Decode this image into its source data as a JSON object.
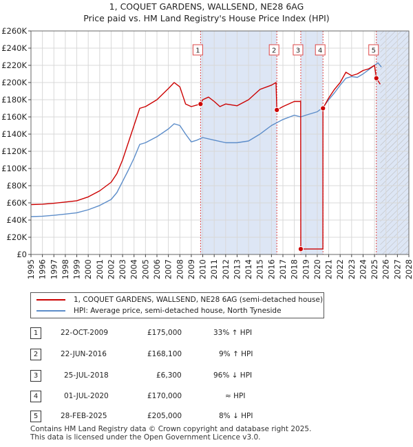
{
  "title_line1": "1, COQUET GARDENS, WALLSEND, NE28 6AG",
  "title_line2": "Price paid vs. HM Land Registry's House Price Index (HPI)",
  "legend": {
    "red_label": "1, COQUET GARDENS, WALLSEND, NE28 6AG (semi-detached house)",
    "blue_label": "HPI: Average price, semi-detached house, North Tyneside"
  },
  "colors": {
    "price_paid": "#cc0000",
    "hpi": "#5b8cc9",
    "shade": "#dde6f5",
    "grid": "#d8d8d8",
    "marker_dash": "#dd4444"
  },
  "transactions": [
    {
      "num": "1",
      "date": "22-OCT-2009",
      "price": "£175,000",
      "hpi": "33% ↑ HPI"
    },
    {
      "num": "2",
      "date": "22-JUN-2016",
      "price": "£168,100",
      "hpi": "9% ↑ HPI"
    },
    {
      "num": "3",
      "date": "25-JUL-2018",
      "price": "£6,300",
      "hpi": "96% ↓ HPI"
    },
    {
      "num": "4",
      "date": "01-JUL-2020",
      "price": "£170,000",
      "hpi": "≈ HPI"
    },
    {
      "num": "5",
      "date": "28-FEB-2025",
      "price": "£205,000",
      "hpi": "8% ↓ HPI"
    }
  ],
  "footer_line1": "Contains HM Land Registry data © Crown copyright and database right 2025.",
  "footer_line2": "This data is licensed under the Open Government Licence v3.0.",
  "chart_data": {
    "type": "line",
    "title": "1, COQUET GARDENS, WALLSEND, NE28 6AG",
    "subtitle": "Price paid vs. HM Land Registry's House Price Index (HPI)",
    "xlim": [
      1995,
      2028
    ],
    "ylim": [
      0,
      260000
    ],
    "x_ticks": [
      "1995",
      "1996",
      "1997",
      "1998",
      "1999",
      "2000",
      "2001",
      "2002",
      "2003",
      "2004",
      "2005",
      "2006",
      "2007",
      "2008",
      "2009",
      "2010",
      "2011",
      "2012",
      "2013",
      "2014",
      "2015",
      "2016",
      "2017",
      "2018",
      "2019",
      "2020",
      "2021",
      "2022",
      "2023",
      "2024",
      "2025",
      "2026",
      "2027",
      "2028"
    ],
    "y_ticks": [
      {
        "v": 0,
        "label": "£0"
      },
      {
        "v": 20000,
        "label": "£20K"
      },
      {
        "v": 40000,
        "label": "£40K"
      },
      {
        "v": 60000,
        "label": "£60K"
      },
      {
        "v": 80000,
        "label": "£80K"
      },
      {
        "v": 100000,
        "label": "£100K"
      },
      {
        "v": 120000,
        "label": "£120K"
      },
      {
        "v": 140000,
        "label": "£140K"
      },
      {
        "v": 160000,
        "label": "£160K"
      },
      {
        "v": 180000,
        "label": "£180K"
      },
      {
        "v": 200000,
        "label": "£200K"
      },
      {
        "v": 220000,
        "label": "£220K"
      },
      {
        "v": 240000,
        "label": "£240K"
      },
      {
        "v": 260000,
        "label": "£260K"
      }
    ],
    "grid": true,
    "shaded_ranges": [
      [
        2009.81,
        2016.47
      ],
      [
        2018.56,
        2020.5
      ],
      [
        2025.16,
        2028
      ]
    ],
    "hatched_from": 2025.5,
    "series": [
      {
        "name": "HPI: Average price, semi-detached house, North Tyneside",
        "x": [
          1995,
          1996,
          1997,
          1998,
          1999,
          2000,
          2001,
          2002,
          2002.5,
          2003,
          2003.5,
          2004,
          2004.5,
          2005,
          2006,
          2007,
          2007.5,
          2008,
          2008.5,
          2009,
          2009.5,
          2010,
          2011,
          2012,
          2013,
          2014,
          2015,
          2016,
          2017,
          2018,
          2018.56,
          2019,
          2020,
          2020.5,
          2021,
          2021.5,
          2022,
          2022.5,
          2023,
          2023.5,
          2024,
          2024.5,
          2025,
          2025.3,
          2025.6
        ],
        "values": [
          44000,
          44500,
          45500,
          47000,
          48500,
          52000,
          57000,
          64000,
          72000,
          85000,
          98000,
          112000,
          128000,
          130000,
          137000,
          146000,
          152000,
          150000,
          140000,
          131000,
          133000,
          136000,
          133000,
          130000,
          130000,
          132000,
          140000,
          150000,
          157000,
          162000,
          160000,
          162000,
          166000,
          171000,
          180000,
          188000,
          197000,
          205000,
          207000,
          206000,
          210000,
          215000,
          220000,
          223000,
          218000
        ]
      },
      {
        "name": "1, COQUET GARDENS, WALLSEND, NE28 6AG (semi-detached house)",
        "x": [
          1995,
          1996,
          1997,
          1998,
          1999,
          2000,
          2001,
          2002,
          2002.5,
          2003,
          2003.5,
          2004,
          2004.5,
          2005,
          2006,
          2007,
          2007.5,
          2008,
          2008.5,
          2009,
          2009.81,
          2010,
          2010.5,
          2011,
          2011.5,
          2012,
          2013,
          2014,
          2015,
          2016,
          2016.4,
          2016.47,
          2017,
          2017.5,
          2018,
          2018.55,
          2018.56,
          2020.49,
          2020.5,
          2021,
          2021.5,
          2022,
          2022.5,
          2023,
          2023.5,
          2024,
          2024.5,
          2025,
          2025.16,
          2025.5
        ],
        "values": [
          58000,
          58500,
          59500,
          61000,
          62500,
          67000,
          74000,
          84000,
          94000,
          110000,
          130000,
          150000,
          170000,
          172000,
          180000,
          193000,
          200000,
          195000,
          175000,
          172000,
          175000,
          180000,
          183000,
          178000,
          172000,
          175000,
          173000,
          180000,
          192000,
          197000,
          200000,
          168100,
          172000,
          175000,
          178000,
          178000,
          6300,
          6300,
          170000,
          182000,
          192000,
          200000,
          212000,
          208000,
          210000,
          214000,
          216000,
          220000,
          205000,
          198000
        ]
      }
    ],
    "sale_points": [
      {
        "label": "1",
        "x": 2009.81,
        "y": 175000
      },
      {
        "label": "2",
        "x": 2016.47,
        "y": 168100
      },
      {
        "label": "3",
        "x": 2018.56,
        "y": 6300
      },
      {
        "label": "4",
        "x": 2020.5,
        "y": 170000
      },
      {
        "label": "5",
        "x": 2025.16,
        "y": 205000
      }
    ]
  }
}
